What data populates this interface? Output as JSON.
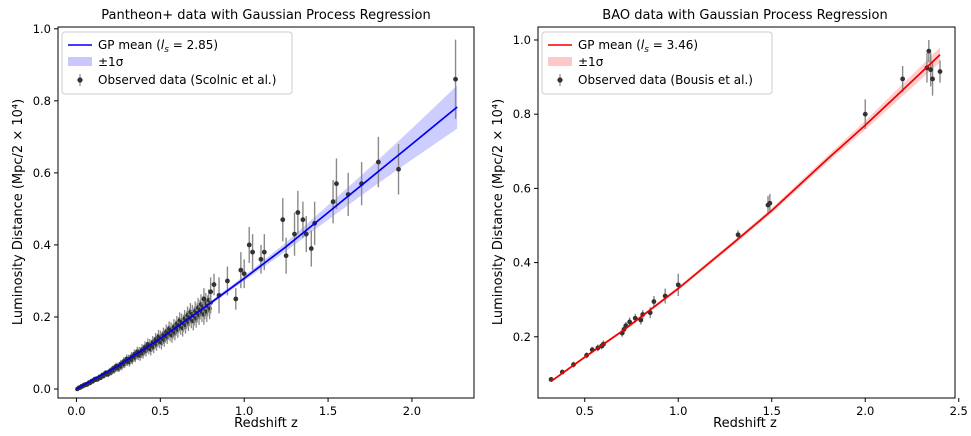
{
  "chart_data": [
    {
      "type": "scatter",
      "title": "Pantheon+ data with Gaussian Process Regression",
      "xlabel": "Redshift z",
      "ylabel": "Luminosity Distance (Mpc/2 × 10⁴)",
      "xlim": [
        -0.11,
        2.37
      ],
      "ylim": [
        -0.025,
        1.005
      ],
      "xticks": [
        0.0,
        0.5,
        1.0,
        1.5,
        2.0
      ],
      "xtick_labels": [
        "0.0",
        "0.5",
        "1.0",
        "1.5",
        "2.0"
      ],
      "yticks": [
        0.0,
        0.2,
        0.4,
        0.6,
        0.8,
        1.0
      ],
      "ytick_labels": [
        "0.0",
        "0.2",
        "0.4",
        "0.6",
        "0.8",
        "1.0"
      ],
      "mean_color": "#0000ee",
      "band_color": "#c8c8ff",
      "legend_position": "upper-left",
      "legend": {
        "mean_prefix": "GP mean (",
        "mean_ls": "l",
        "mean_ls_sub": "s",
        "mean_eq": " = 2.85)",
        "band": "±1σ",
        "data": "Observed data (Scolnic et al.)"
      },
      "gp_mean": {
        "x": [
          0.0,
          0.25,
          0.5,
          0.75,
          1.0,
          1.25,
          1.5,
          1.75,
          2.0,
          2.27
        ],
        "y": [
          0.0,
          0.065,
          0.14,
          0.222,
          0.307,
          0.395,
          0.49,
          0.585,
          0.68,
          0.783
        ],
        "sigma": [
          0.001,
          0.002,
          0.003,
          0.005,
          0.007,
          0.012,
          0.02,
          0.03,
          0.043,
          0.06
        ]
      },
      "dense_cloud": {
        "x": [
          0.005,
          0.05,
          0.1,
          0.15,
          0.2,
          0.25,
          0.3,
          0.35,
          0.4,
          0.45,
          0.5,
          0.55,
          0.6,
          0.65,
          0.7,
          0.75,
          0.8
        ],
        "y": [
          0.001,
          0.011,
          0.023,
          0.035,
          0.048,
          0.062,
          0.077,
          0.092,
          0.107,
          0.122,
          0.138,
          0.155,
          0.171,
          0.189,
          0.205,
          0.221,
          0.236
        ],
        "err": [
          0.002,
          0.003,
          0.004,
          0.006,
          0.008,
          0.01,
          0.012,
          0.013,
          0.015,
          0.017,
          0.019,
          0.02,
          0.022,
          0.024,
          0.026,
          0.028,
          0.03
        ]
      },
      "points": {
        "x": [
          0.76,
          0.8,
          0.82,
          0.85,
          0.9,
          0.95,
          0.98,
          1.0,
          1.03,
          1.05,
          1.1,
          1.12,
          1.23,
          1.25,
          1.3,
          1.32,
          1.35,
          1.37,
          1.4,
          1.42,
          1.53,
          1.55,
          1.62,
          1.7,
          1.8,
          1.92,
          2.26
        ],
        "y": [
          0.25,
          0.27,
          0.29,
          0.26,
          0.3,
          0.25,
          0.33,
          0.32,
          0.4,
          0.38,
          0.36,
          0.38,
          0.47,
          0.37,
          0.43,
          0.49,
          0.47,
          0.43,
          0.39,
          0.46,
          0.52,
          0.57,
          0.54,
          0.57,
          0.63,
          0.61,
          0.86
        ],
        "err": [
          0.03,
          0.04,
          0.03,
          0.05,
          0.04,
          0.03,
          0.05,
          0.04,
          0.05,
          0.05,
          0.04,
          0.05,
          0.06,
          0.05,
          0.06,
          0.06,
          0.05,
          0.05,
          0.05,
          0.06,
          0.06,
          0.07,
          0.06,
          0.06,
          0.07,
          0.07,
          0.11
        ]
      }
    },
    {
      "type": "scatter",
      "title": "BAO data with Gaussian Process Regression",
      "xlabel": "Redshift z",
      "ylabel": "Luminosity Distance (Mpc/2 × 10⁴)",
      "xlim": [
        0.25,
        2.48
      ],
      "ylim": [
        0.035,
        1.035
      ],
      "xticks": [
        0.5,
        1.0,
        1.5,
        2.0,
        2.5
      ],
      "xtick_labels": [
        "0.5",
        "1.0",
        "1.5",
        "2.0",
        "2.5"
      ],
      "yticks": [
        0.2,
        0.4,
        0.6,
        0.8,
        1.0
      ],
      "ytick_labels": [
        "0.2",
        "0.4",
        "0.6",
        "0.8",
        "1.0"
      ],
      "mean_color": "#ee0000",
      "band_color": "#ffc8c8",
      "legend_position": "upper-left",
      "legend": {
        "mean_prefix": "GP mean (",
        "mean_ls": "l",
        "mean_ls_sub": "s",
        "mean_eq": " = 3.46)",
        "band": "±1σ",
        "data": "Observed data (Bousis et al.)"
      },
      "gp_mean": {
        "x": [
          0.32,
          0.5,
          0.7,
          1.0,
          1.3,
          1.5,
          1.8,
          2.0,
          2.2,
          2.4
        ],
        "y": [
          0.08,
          0.145,
          0.215,
          0.33,
          0.455,
          0.54,
          0.68,
          0.77,
          0.865,
          0.96
        ],
        "sigma": [
          0.003,
          0.004,
          0.004,
          0.005,
          0.006,
          0.007,
          0.009,
          0.012,
          0.016,
          0.02
        ]
      },
      "points": {
        "x": [
          0.32,
          0.38,
          0.44,
          0.51,
          0.54,
          0.57,
          0.59,
          0.6,
          0.7,
          0.71,
          0.72,
          0.74,
          0.77,
          0.8,
          0.81,
          0.85,
          0.87,
          0.93,
          1.0,
          1.32,
          1.48,
          1.49,
          2.0,
          2.2,
          2.33,
          2.34,
          2.35,
          2.36,
          2.4
        ],
        "y": [
          0.085,
          0.105,
          0.125,
          0.15,
          0.165,
          0.17,
          0.175,
          0.18,
          0.21,
          0.22,
          0.23,
          0.24,
          0.25,
          0.245,
          0.26,
          0.265,
          0.295,
          0.31,
          0.34,
          0.475,
          0.555,
          0.56,
          0.8,
          0.895,
          0.925,
          0.97,
          0.92,
          0.895,
          0.915
        ],
        "err": [
          0.006,
          0.006,
          0.008,
          0.008,
          0.008,
          0.009,
          0.009,
          0.01,
          0.01,
          0.012,
          0.01,
          0.012,
          0.012,
          0.012,
          0.012,
          0.015,
          0.015,
          0.02,
          0.03,
          0.012,
          0.025,
          0.025,
          0.04,
          0.035,
          0.04,
          0.03,
          0.045,
          0.045,
          0.03
        ]
      }
    }
  ]
}
